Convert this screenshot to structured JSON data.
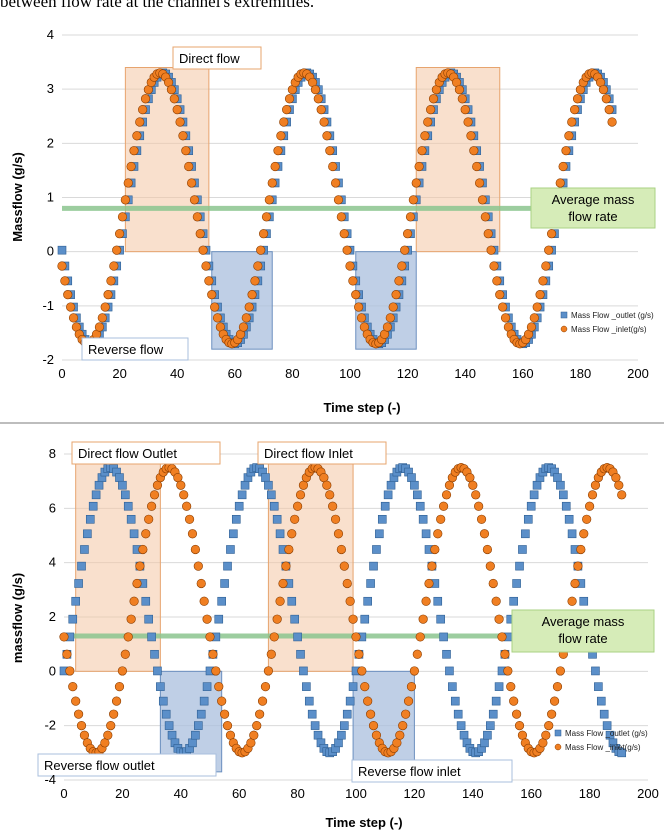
{
  "caption": "between flow rate at the channel's extremities.",
  "colors": {
    "outlet_fill": "#5b8fc9",
    "outlet_stroke": "#2f5f93",
    "inlet_fill": "#f07f22",
    "inlet_stroke": "#8a3d00",
    "direct_box": "#f4c6a4",
    "reverse_box": "#a9bfdd",
    "avg_line": "#8bc48e"
  },
  "chart_data": [
    {
      "type": "scatter",
      "title": "",
      "xlabel": "Time step (-)",
      "ylabel": "Massflow (g/s)",
      "xlim": [
        0,
        200
      ],
      "ylim": [
        -2,
        4
      ],
      "xticks": [
        "0",
        "20",
        "40",
        "60",
        "80",
        "100",
        "120",
        "140",
        "160",
        "180",
        "200"
      ],
      "yticks": [
        "-2",
        "-1",
        "0",
        "1",
        "2",
        "3",
        "4"
      ],
      "grid": true,
      "legend_position": "lower-right",
      "series": [
        {
          "name": "Mass Flow _outlet  (g/s)",
          "marker": "square",
          "x_start": 0,
          "x_end": 191,
          "amplitude": 2.5,
          "offset": 0.8,
          "period": 50,
          "peak_at": 35
        },
        {
          "name": "Mass Flow _inlet(g/s)",
          "marker": "circle",
          "x_start": 0,
          "x_end": 191,
          "amplitude": 2.5,
          "offset": 0.8,
          "period": 50,
          "peak_at": 34
        }
      ],
      "average_line": {
        "y": 0.8,
        "label_line1": "Average mass",
        "label_line2": "flow rate"
      },
      "direct_boxes": [
        {
          "x0": 22,
          "x1": 51,
          "y0": 0,
          "y1": 3.4
        },
        {
          "x0": 123,
          "x1": 152,
          "y0": 0,
          "y1": 3.4
        }
      ],
      "reverse_boxes": [
        {
          "x0": 52,
          "x1": 73,
          "y0": -1.8,
          "y1": 0
        },
        {
          "x0": 102,
          "x1": 123,
          "y0": -1.8,
          "y1": 0
        }
      ],
      "annotations": {
        "direct": "Direct flow",
        "reverse": "Reverse flow"
      }
    },
    {
      "type": "scatter",
      "title": "",
      "xlabel": "Time step (-)",
      "ylabel": "massflow (g/s)",
      "xlim": [
        0,
        200
      ],
      "ylim": [
        -4,
        8
      ],
      "xticks": [
        "0",
        "20",
        "40",
        "60",
        "80",
        "100",
        "120",
        "140",
        "160",
        "180",
        "200"
      ],
      "yticks": [
        "-4",
        "-2",
        "0",
        "2",
        "4",
        "6",
        "8"
      ],
      "grid": true,
      "legend_position": "lower-right",
      "series": [
        {
          "name": "Mass Flow _outlet  (g/s)",
          "marker": "square",
          "x_start": 0,
          "x_end": 191,
          "amplitude": 5.25,
          "offset": 2.25,
          "period": 50,
          "peak_at": 16
        },
        {
          "name": "Mass Flow _inlet(g/s)",
          "marker": "circle",
          "x_start": 0,
          "x_end": 191,
          "amplitude": 5.25,
          "offset": 2.25,
          "period": 50,
          "peak_at": 36
        }
      ],
      "average_line": {
        "y": 1.3,
        "label_line1": "Average mass",
        "label_line2": "flow rate"
      },
      "direct_boxes": [
        {
          "x0": 4,
          "x1": 33,
          "y0": 0,
          "y1": 7.7
        },
        {
          "x0": 70,
          "x1": 99,
          "y0": 0,
          "y1": 7.7
        }
      ],
      "reverse_boxes": [
        {
          "x0": 33,
          "x1": 54,
          "y0": -3.7,
          "y1": 0
        },
        {
          "x0": 99,
          "x1": 120,
          "y0": -3.7,
          "y1": 0
        }
      ],
      "annotations": {
        "direct_outlet": "Direct flow Outlet",
        "direct_inlet": "Direct flow Inlet",
        "reverse_outlet": "Reverse flow outlet",
        "reverse_inlet": "Reverse flow inlet"
      }
    }
  ]
}
